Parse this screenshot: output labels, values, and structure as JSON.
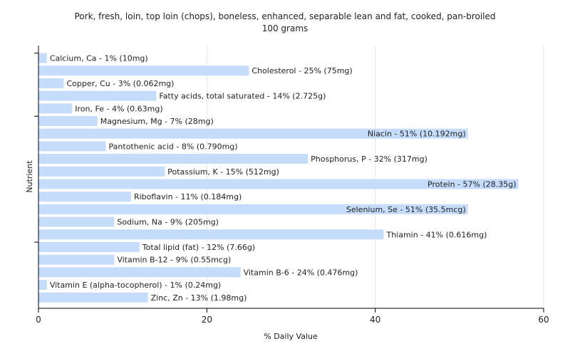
{
  "chart_data": {
    "type": "bar",
    "orientation": "horizontal",
    "title": "Pork, fresh, loin, top loin (chops), boneless, enhanced, separable lean and fat, cooked, pan-broiled",
    "subtitle": "100 grams",
    "xlabel": "% Daily Value",
    "ylabel": "Nutrient",
    "xlim": [
      0,
      60
    ],
    "xticks": [
      0,
      20,
      40,
      60
    ],
    "grid": "vertical",
    "bar_color": "#c5dcfb",
    "categories": [
      "Calcium, Ca",
      "Cholesterol",
      "Copper, Cu",
      "Fatty acids, total saturated",
      "Iron, Fe",
      "Magnesium, Mg",
      "Niacin",
      "Pantothenic acid",
      "Phosphorus, P",
      "Potassium, K",
      "Protein",
      "Riboflavin",
      "Selenium, Se",
      "Sodium, Na",
      "Thiamin",
      "Total lipid (fat)",
      "Vitamin B-12",
      "Vitamin B-6",
      "Vitamin E (alpha-tocopherol)",
      "Zinc, Zn"
    ],
    "values": [
      1,
      25,
      3,
      14,
      4,
      7,
      51,
      8,
      32,
      15,
      57,
      11,
      51,
      9,
      41,
      12,
      9,
      24,
      1,
      13
    ],
    "labels": [
      "Calcium, Ca - 1% (10mg)",
      "Cholesterol - 25% (75mg)",
      "Copper, Cu - 3% (0.062mg)",
      "Fatty acids, total saturated - 14% (2.725g)",
      "Iron, Fe - 4% (0.63mg)",
      "Magnesium, Mg - 7% (28mg)",
      "Niacin - 51% (10.192mg)",
      "Pantothenic acid - 8% (0.790mg)",
      "Phosphorus, P - 32% (317mg)",
      "Potassium, K - 15% (512mg)",
      "Protein - 57% (28.35g)",
      "Riboflavin - 11% (0.184mg)",
      "Selenium, Se - 51% (35.5mcg)",
      "Sodium, Na - 9% (205mg)",
      "Thiamin - 41% (0.616mg)",
      "Total lipid (fat) - 12% (7.66g)",
      "Vitamin B-12 - 9% (0.55mcg)",
      "Vitamin B-6 - 24% (0.476mg)",
      "Vitamin E (alpha-tocopherol) - 1% (0.24mg)",
      "Zinc, Zn - 13% (1.98mg)"
    ]
  }
}
